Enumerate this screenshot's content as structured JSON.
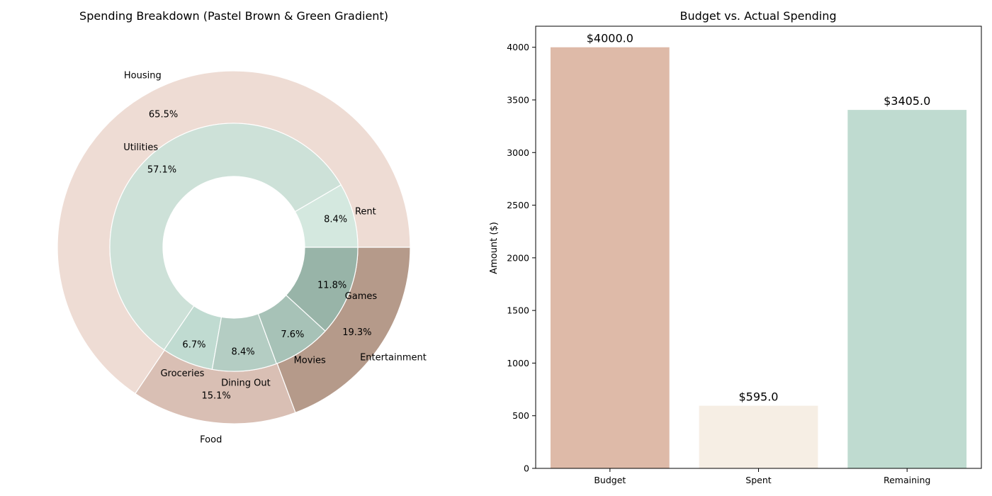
{
  "chart_data": [
    {
      "type": "pie",
      "subtype": "nested-donut",
      "title": "Spending Breakdown (Pastel Brown & Green Gradient)",
      "outer": [
        {
          "label": "Housing",
          "percent": 65.5,
          "color": "#eedcd4"
        },
        {
          "label": "Food",
          "percent": 15.1,
          "color": "#d9bfb4"
        },
        {
          "label": "Entertainment",
          "percent": 19.3,
          "color": "#b59a8a"
        }
      ],
      "inner": [
        {
          "label": "Rent",
          "percent": 8.4,
          "color": "#d4e8df"
        },
        {
          "label": "Utilities",
          "percent": 57.1,
          "color": "#cde1d8"
        },
        {
          "label": "Groceries",
          "percent": 6.7,
          "color": "#c0dbd1"
        },
        {
          "label": "Dining Out",
          "percent": 8.4,
          "color": "#b4cdc3"
        },
        {
          "label": "Movies",
          "percent": 7.6,
          "color": "#a7c2b7"
        },
        {
          "label": "Games",
          "percent": 11.8,
          "color": "#98b4a8"
        }
      ]
    },
    {
      "type": "bar",
      "title": "Budget vs. Actual Spending",
      "categories": [
        "Budget",
        "Spent",
        "Remaining"
      ],
      "values": [
        4000.0,
        595.0,
        3405.0
      ],
      "value_labels": [
        "$4000.0",
        "$595.0",
        "$3405.0"
      ],
      "colors": [
        "#debaa8",
        "#f6eee4",
        "#bfdbd0"
      ],
      "ylabel": "Amount ($)",
      "ylim": [
        0,
        4200
      ],
      "yticks": [
        "0",
        "500",
        "1000",
        "1500",
        "2000",
        "2500",
        "3000",
        "3500",
        "4000"
      ],
      "grid": false
    }
  ]
}
